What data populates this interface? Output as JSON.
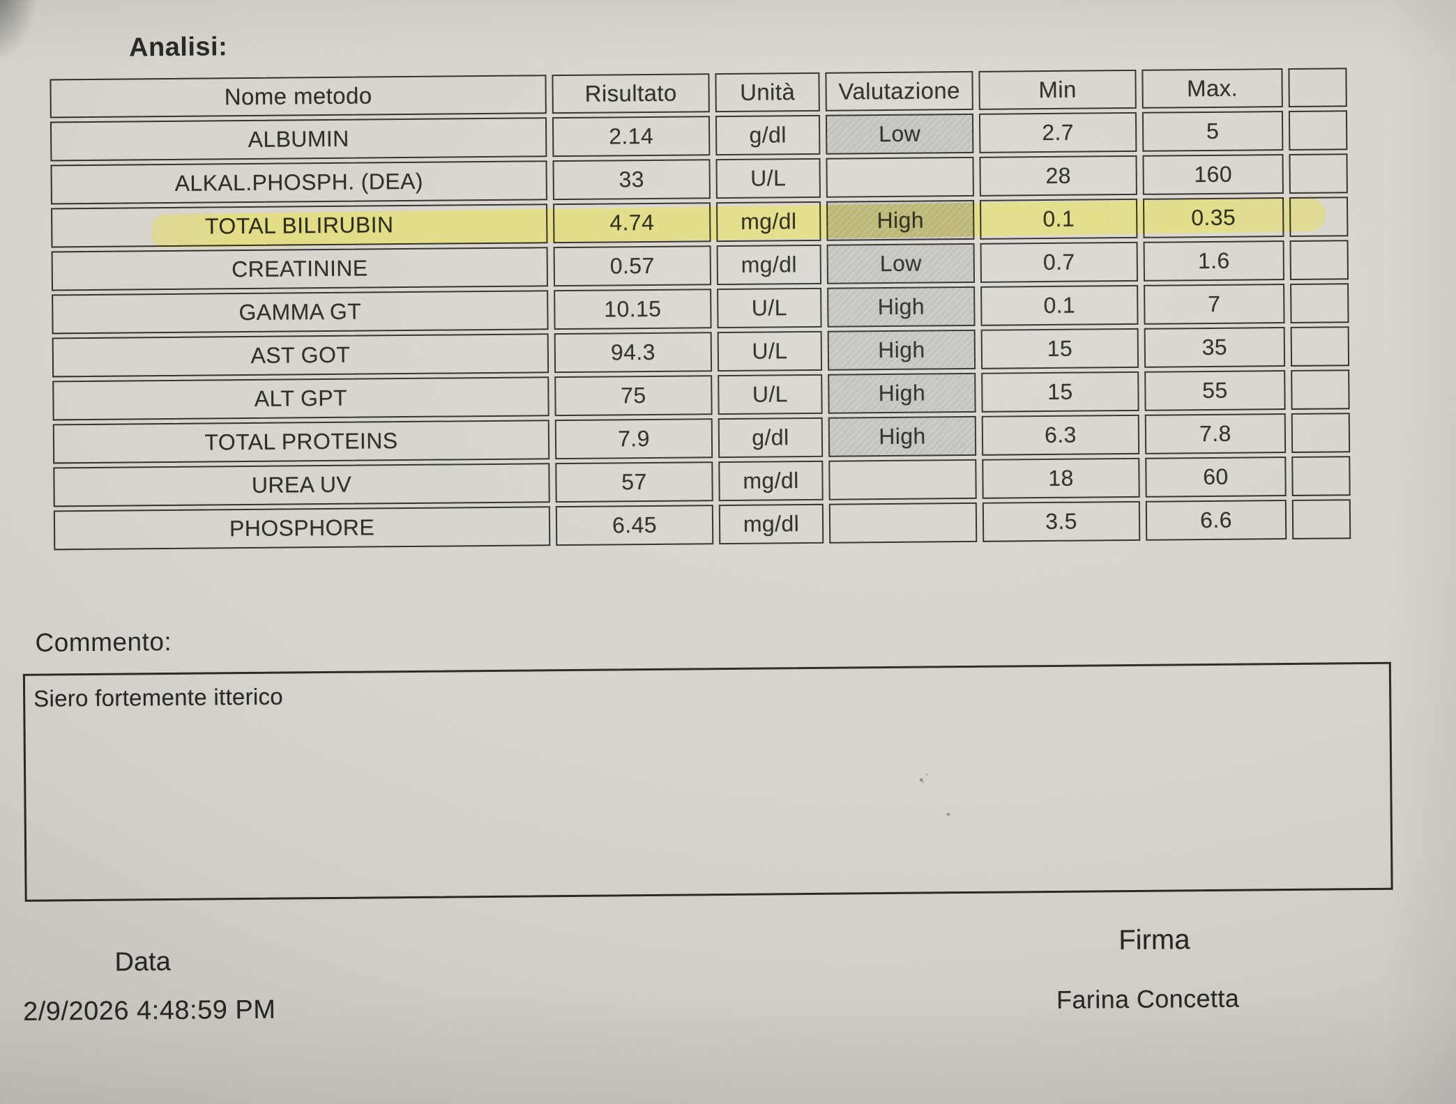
{
  "document": {
    "analyses_label": "Analisi:",
    "comment_label": "Commento:",
    "comment_text": "Siero fortemente itterico",
    "date_label": "Data",
    "date_value": "2/9/2026 4:48:59 PM",
    "signature_label": "Firma",
    "signature_name": "Farina Concetta"
  },
  "table": {
    "headers": [
      "Nome metodo",
      "Risultato",
      "Unità",
      "Valutazione",
      "Min",
      "Max."
    ],
    "rows": [
      {
        "name": "ALBUMIN",
        "result": "2.14",
        "unit": "g/dl",
        "evaluation": "Low",
        "min": "2.7",
        "max": "5",
        "highlighted": false
      },
      {
        "name": "ALKAL.PHOSPH. (DEA)",
        "result": "33",
        "unit": "U/L",
        "evaluation": "",
        "min": "28",
        "max": "160",
        "highlighted": false
      },
      {
        "name": "TOTAL BILIRUBIN",
        "result": "4.74",
        "unit": "mg/dl",
        "evaluation": "High",
        "min": "0.1",
        "max": "0.35",
        "highlighted": true
      },
      {
        "name": "CREATININE",
        "result": "0.57",
        "unit": "mg/dl",
        "evaluation": "Low",
        "min": "0.7",
        "max": "1.6",
        "highlighted": false
      },
      {
        "name": "GAMMA GT",
        "result": "10.15",
        "unit": "U/L",
        "evaluation": "High",
        "min": "0.1",
        "max": "7",
        "highlighted": false
      },
      {
        "name": "AST GOT",
        "result": "94.3",
        "unit": "U/L",
        "evaluation": "High",
        "min": "15",
        "max": "35",
        "highlighted": false
      },
      {
        "name": "ALT GPT",
        "result": "75",
        "unit": "U/L",
        "evaluation": "High",
        "min": "15",
        "max": "55",
        "highlighted": false
      },
      {
        "name": "TOTAL PROTEINS",
        "result": "7.9",
        "unit": "g/dl",
        "evaluation": "High",
        "min": "6.3",
        "max": "7.8",
        "highlighted": false
      },
      {
        "name": "UREA UV",
        "result": "57",
        "unit": "mg/dl",
        "evaluation": "",
        "min": "18",
        "max": "60",
        "highlighted": false
      },
      {
        "name": "PHOSPHORE",
        "result": "6.45",
        "unit": "mg/dl",
        "evaluation": "",
        "min": "3.5",
        "max": "6.6",
        "highlighted": false
      }
    ]
  },
  "colors": {
    "paper": "#d7d4cd",
    "ink": "#26251f",
    "evaluation_shade": "#c9c8c3",
    "highlighter_yellow": "#e9e254"
  }
}
